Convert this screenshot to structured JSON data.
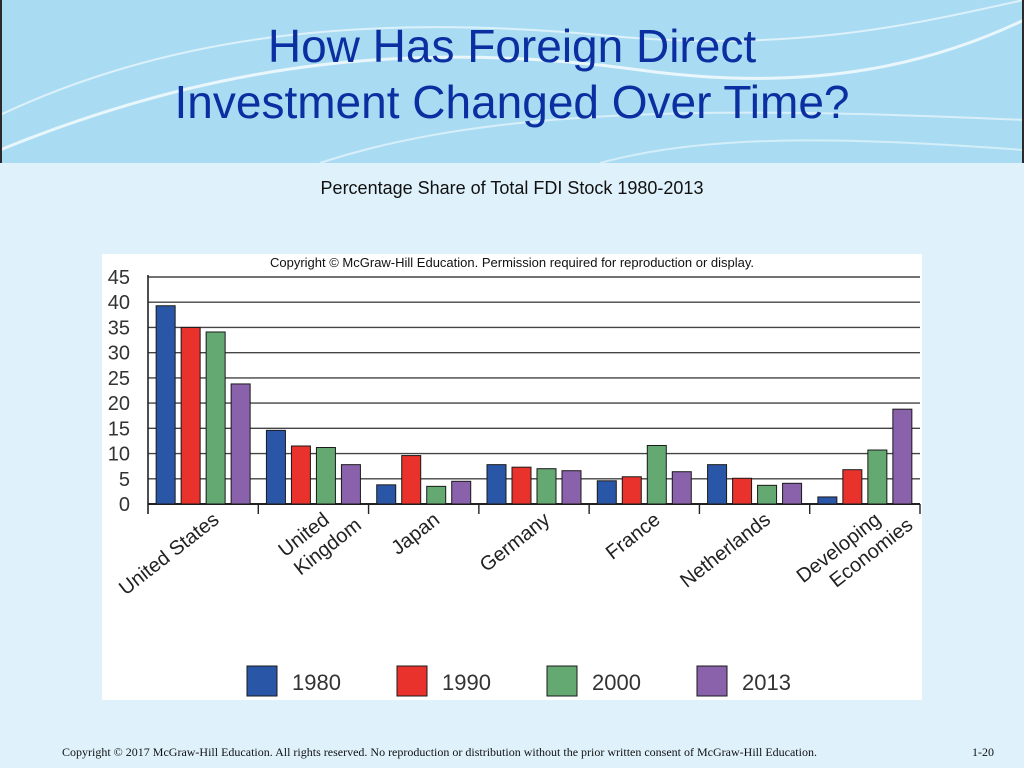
{
  "slide": {
    "title": "How Has Foreign Direct\nInvestment Changed Over Time?",
    "subtitle": "Percentage Share of Total FDI Stock 1980-2013",
    "footer_copyright": "Copyright © 2017 McGraw-Hill Education. All rights reserved. No reproduction or distribution without the prior written consent of McGraw-Hill Education.",
    "page_number": "1-20"
  },
  "colors": {
    "header_bg": "#a9dcf3",
    "title": "#0b2fa0",
    "slide_bg": "#dff2fb"
  },
  "chart_data": {
    "type": "bar",
    "title": "",
    "notice": "Copyright © McGraw-Hill Education. Permission required for reproduction or display.",
    "xlabel": "",
    "ylabel": "",
    "ylim": [
      0,
      45
    ],
    "yticks": [
      "45",
      "40",
      "35",
      "30",
      "25",
      "20",
      "15",
      "10",
      "5",
      "0"
    ],
    "grid": true,
    "legend_position": "bottom",
    "categories": [
      "United States",
      "United Kingdom",
      "Japan",
      "Germany",
      "France",
      "Netherlands",
      "Developing Economies"
    ],
    "category_labels": [
      [
        "United States"
      ],
      [
        "United",
        "Kingdom"
      ],
      [
        "Japan"
      ],
      [
        "Germany"
      ],
      [
        "France"
      ],
      [
        "Netherlands"
      ],
      [
        "Developing",
        "Economies"
      ]
    ],
    "series": [
      {
        "name": "1980",
        "color": "#2a56a8",
        "values": [
          39.3,
          14.6,
          3.8,
          7.8,
          4.6,
          7.8,
          1.4
        ]
      },
      {
        "name": "1990",
        "color": "#e8322b",
        "values": [
          35.0,
          11.5,
          9.6,
          7.3,
          5.4,
          5.1,
          6.8
        ]
      },
      {
        "name": "2000",
        "color": "#64a872",
        "values": [
          34.1,
          11.2,
          3.5,
          7.0,
          11.6,
          3.7,
          10.7
        ]
      },
      {
        "name": "2013",
        "color": "#8a62ac",
        "values": [
          23.8,
          7.8,
          4.5,
          6.6,
          6.4,
          4.1,
          18.8
        ]
      }
    ]
  }
}
